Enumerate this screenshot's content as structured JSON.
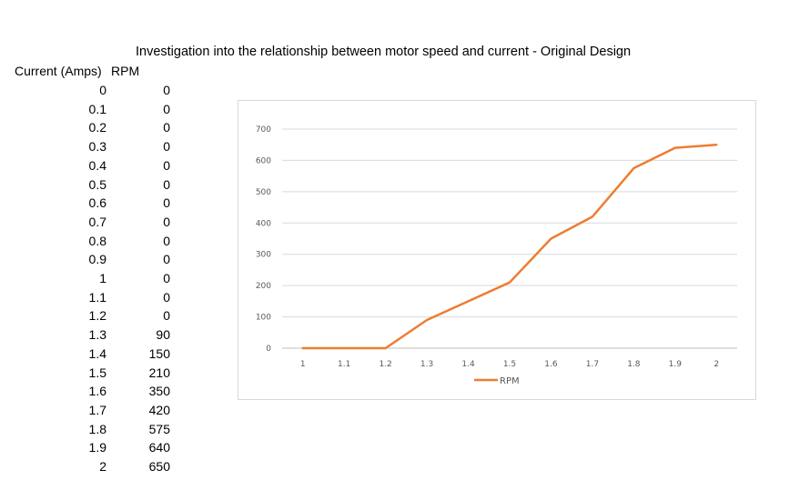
{
  "title": "Investigation into the relationship between motor speed and current - Original Design",
  "table": {
    "headers": [
      "Current (Amps)",
      "RPM"
    ],
    "rows": [
      [
        "0",
        "0"
      ],
      [
        "0.1",
        "0"
      ],
      [
        "0.2",
        "0"
      ],
      [
        "0.3",
        "0"
      ],
      [
        "0.4",
        "0"
      ],
      [
        "0.5",
        "0"
      ],
      [
        "0.6",
        "0"
      ],
      [
        "0.7",
        "0"
      ],
      [
        "0.8",
        "0"
      ],
      [
        "0.9",
        "0"
      ],
      [
        "1",
        "0"
      ],
      [
        "1.1",
        "0"
      ],
      [
        "1.2",
        "0"
      ],
      [
        "1.3",
        "90"
      ],
      [
        "1.4",
        "150"
      ],
      [
        "1.5",
        "210"
      ],
      [
        "1.6",
        "350"
      ],
      [
        "1.7",
        "420"
      ],
      [
        "1.8",
        "575"
      ],
      [
        "1.9",
        "640"
      ],
      [
        "2",
        "650"
      ]
    ]
  },
  "chart_data": {
    "type": "line",
    "categories": [
      "1",
      "1.1",
      "1.2",
      "1.3",
      "1.4",
      "1.5",
      "1.6",
      "1.7",
      "1.8",
      "1.9",
      "2"
    ],
    "series": [
      {
        "name": "RPM",
        "values": [
          0,
          0,
          0,
          90,
          150,
          210,
          350,
          420,
          575,
          640,
          650
        ],
        "color": "#ED7D31"
      }
    ],
    "yticks": [
      "0",
      "100",
      "200",
      "300",
      "400",
      "500",
      "600",
      "700"
    ],
    "ylim": [
      0,
      700
    ],
    "grid": true,
    "legend_position": "bottom"
  }
}
